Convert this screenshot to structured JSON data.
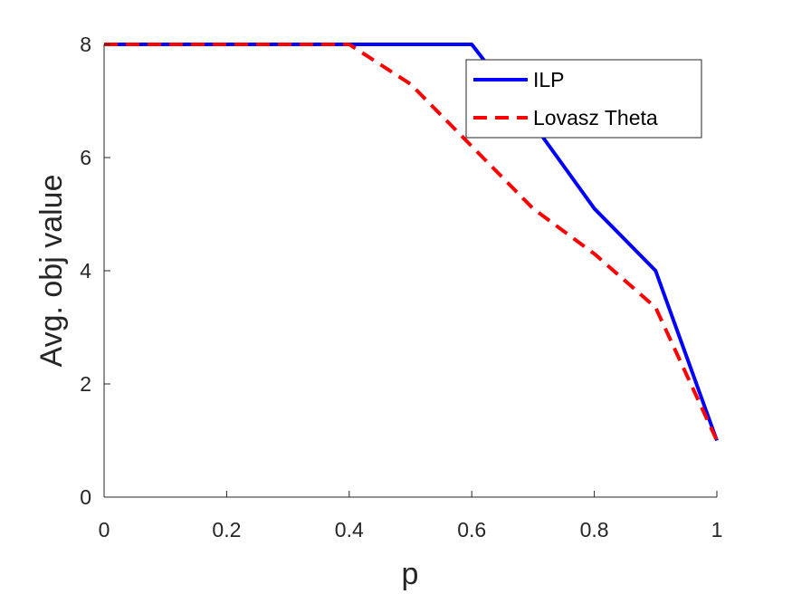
{
  "chart_data": {
    "type": "line",
    "title": "",
    "xlabel": "p",
    "ylabel": "Avg. obj value",
    "xlim": [
      0,
      1
    ],
    "ylim": [
      0,
      8
    ],
    "xticks": [
      0,
      0.2,
      0.4,
      0.6,
      0.8,
      1
    ],
    "xtick_labels": [
      "0",
      "0.2",
      "0.4",
      "0.6",
      "0.8",
      "1"
    ],
    "yticks": [
      0,
      2,
      4,
      6,
      8
    ],
    "ytick_labels": [
      "0",
      "2",
      "4",
      "6",
      "8"
    ],
    "grid": false,
    "legend_position": "top-right",
    "series": [
      {
        "name": "ILP",
        "color": "#0000ff",
        "line_style": "solid",
        "x": [
          0,
          0.1,
          0.2,
          0.3,
          0.4,
          0.5,
          0.6,
          0.7,
          0.8,
          0.9,
          1
        ],
        "y": [
          8,
          8,
          8,
          8,
          8,
          8,
          8,
          6.6,
          5.1,
          4.0,
          1.0
        ]
      },
      {
        "name": "Lovasz Theta",
        "color": "#ff0000",
        "line_style": "dashed",
        "x": [
          0,
          0.1,
          0.2,
          0.3,
          0.4,
          0.5,
          0.6,
          0.7,
          0.8,
          0.9,
          1
        ],
        "y": [
          8,
          8,
          8,
          8,
          8,
          7.3,
          6.2,
          5.1,
          4.3,
          3.35,
          1.0
        ]
      }
    ]
  }
}
